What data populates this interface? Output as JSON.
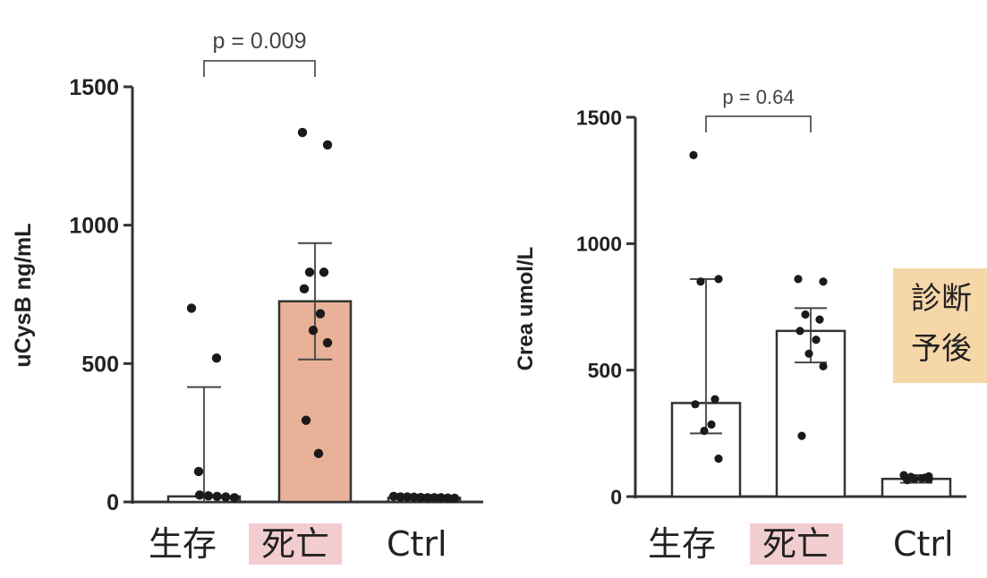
{
  "chart_data": [
    {
      "type": "bar",
      "ylabel": "uCysB ng/mL",
      "ylim": [
        0,
        1500
      ],
      "yticks": [
        0,
        500,
        1000,
        1500
      ],
      "categories": [
        "生存",
        "死亡",
        "Ctrl"
      ],
      "values": [
        20,
        725,
        15
      ],
      "error": [
        [
          0,
          415
        ],
        [
          515,
          935
        ],
        [
          0,
          25
        ]
      ],
      "points": [
        [
          700,
          520,
          110,
          25,
          22,
          20,
          18,
          15
        ],
        [
          1335,
          1290,
          830,
          830,
          770,
          680,
          620,
          575,
          295,
          175
        ],
        [
          20,
          18,
          18,
          17,
          16,
          15,
          15,
          15,
          14,
          13
        ]
      ],
      "bar_colors": [
        "#ffffff",
        "#e9b298",
        "#ffffff"
      ],
      "significance": {
        "between": [
          "生存",
          "死亡"
        ],
        "label": "p = 0.009"
      }
    },
    {
      "type": "bar",
      "ylabel": "Crea umol/L",
      "ylim": [
        0,
        1500
      ],
      "yticks": [
        0,
        500,
        1000,
        1500
      ],
      "categories": [
        "生存",
        "死亡",
        "Ctrl"
      ],
      "values": [
        370,
        655,
        70
      ],
      "error": [
        [
          250,
          860
        ],
        [
          530,
          745
        ],
        [
          55,
          85
        ]
      ],
      "points": [
        [
          1350,
          860,
          850,
          385,
          365,
          285,
          260,
          150
        ],
        [
          860,
          850,
          720,
          700,
          655,
          620,
          565,
          515,
          240
        ],
        [
          85,
          80,
          78,
          75,
          75,
          72,
          70,
          68,
          65
        ]
      ],
      "bar_colors": [
        "#ffffff",
        "#ffffff",
        "#ffffff"
      ],
      "significance": {
        "between": [
          "生存",
          "死亡"
        ],
        "label": "p = 0.64"
      }
    }
  ],
  "legend_note": {
    "lines": [
      "診断",
      "予後"
    ],
    "color": "#f6d7a8"
  },
  "highlight_color": "#f2cdd0"
}
